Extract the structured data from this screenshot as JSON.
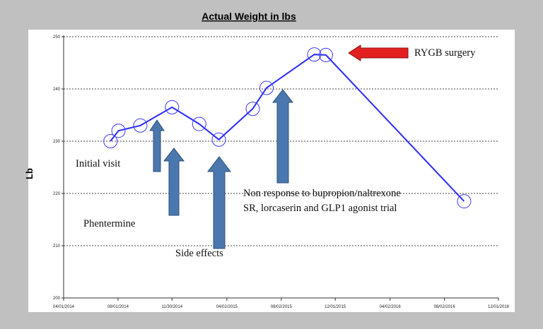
{
  "chart_data": {
    "type": "line",
    "title": "Actual Weight in lbs",
    "ylabel": "Lb",
    "xlabel": "",
    "ylim": [
      200,
      250
    ],
    "yticks": [
      200,
      210,
      220,
      230,
      240,
      250
    ],
    "xlim": [
      "2014-04-01",
      "2016-12-01"
    ],
    "xticks": [
      {
        "date": "2014-04-01",
        "label": "04/01/2014"
      },
      {
        "date": "2014-08-01",
        "label": "08/01/2014"
      },
      {
        "date": "2014-11-30",
        "label": "11/30/2014"
      },
      {
        "date": "2015-04-02",
        "label": "04/02/2015"
      },
      {
        "date": "2015-08-02",
        "label": "08/02/2015"
      },
      {
        "date": "2015-12-01",
        "label": "12/01/2015"
      },
      {
        "date": "2016-04-02",
        "label": "04/02/2016"
      },
      {
        "date": "2016-08-02",
        "label": "08/02/2016"
      },
      {
        "date": "2016-12-01",
        "label": "12/01/2016"
      }
    ],
    "grid": "horizontal dashed",
    "series": [
      {
        "color": "#2b2bff",
        "points": [
          {
            "x": "2014-07-15",
            "y": 230.0
          },
          {
            "x": "2014-08-02",
            "y": 232.0
          },
          {
            "x": "2014-09-20",
            "y": 233.0
          },
          {
            "x": "2014-11-30",
            "y": 236.5
          },
          {
            "x": "2015-01-30",
            "y": 233.3
          },
          {
            "x": "2015-03-15",
            "y": 230.3
          },
          {
            "x": "2015-05-30",
            "y": 236.2
          },
          {
            "x": "2015-06-30",
            "y": 240.2
          },
          {
            "x": "2015-10-15",
            "y": 246.6
          },
          {
            "x": "2015-11-10",
            "y": 246.5
          },
          {
            "x": "2016-09-15",
            "y": 218.5
          }
        ]
      }
    ],
    "annotations": [
      {
        "text": "Initial visit"
      },
      {
        "text": "Phentermine"
      },
      {
        "text": "Side effects"
      },
      {
        "text_lines": [
          "Non response to bupropion/naltrexone",
          "SR, lorcaserin and GLP1 agonist trial"
        ]
      },
      {
        "text": "RYGB surgery"
      }
    ],
    "colors": {
      "line": "#2b2bff",
      "marker": "#3a3aff",
      "up_arrow": "#4a78ae",
      "surgery_arrow": "#e32020"
    }
  }
}
